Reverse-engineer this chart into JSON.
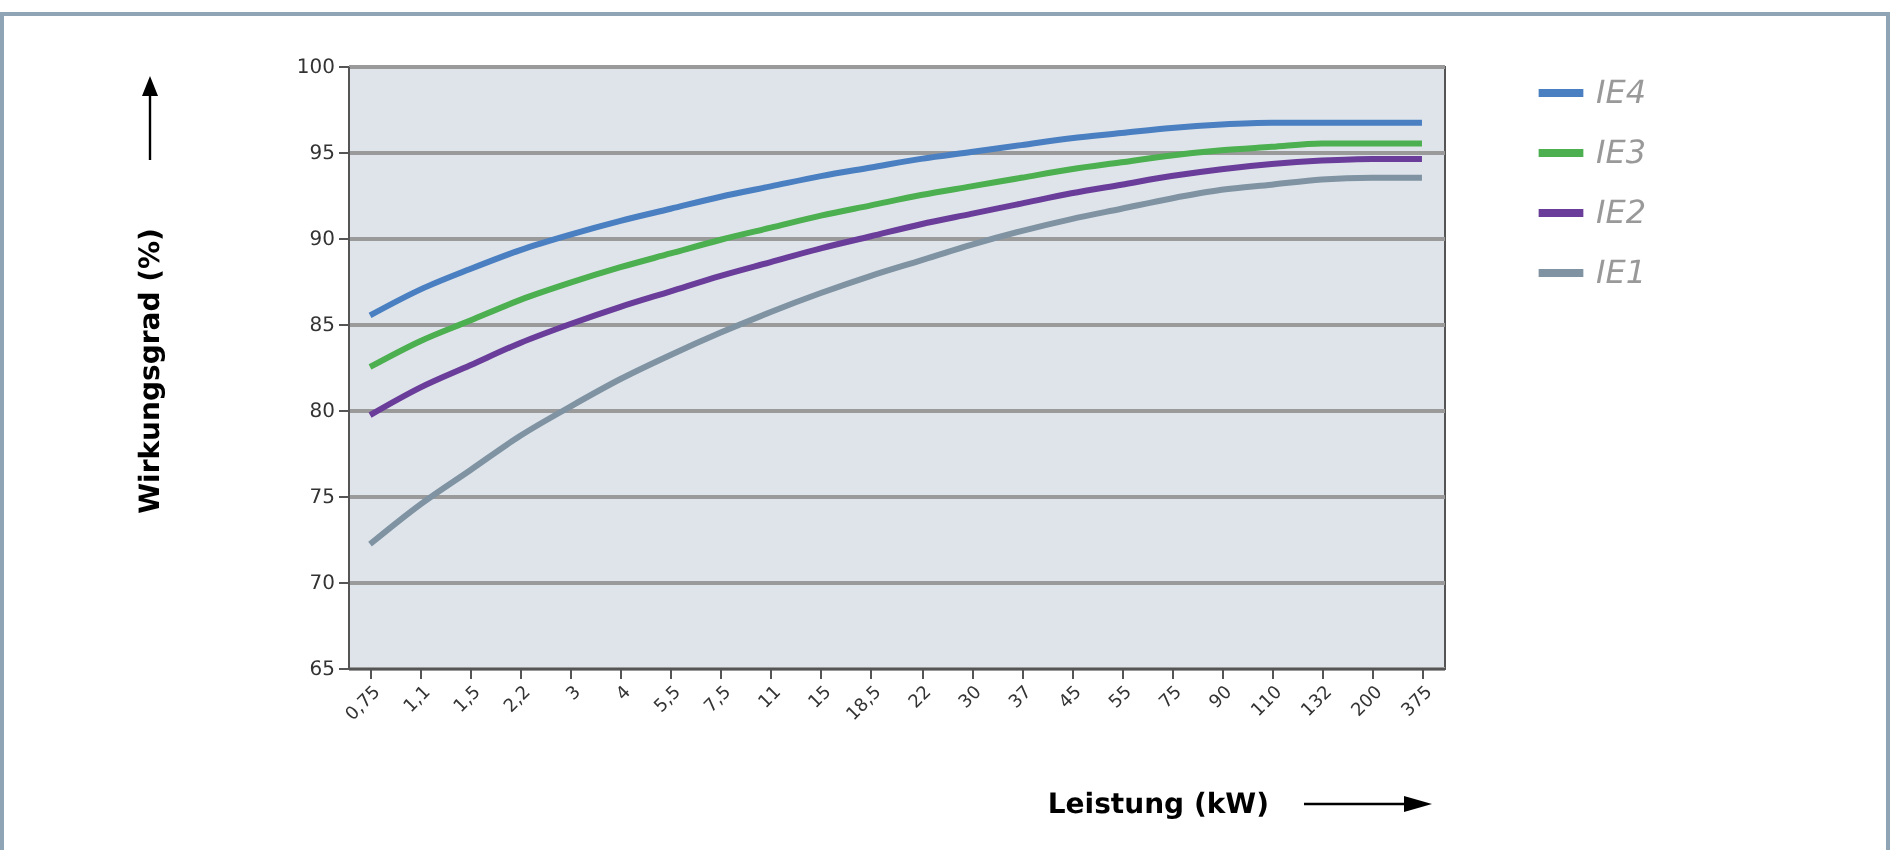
{
  "chart_data": {
    "type": "line",
    "xlabel": "Leistung (kW)",
    "ylabel": "Wirkungsgrad (%)",
    "categories": [
      "0,75",
      "1,1",
      "1,5",
      "2,2",
      "3",
      "4",
      "5,5",
      "7,5",
      "11",
      "15",
      "18,5",
      "22",
      "30",
      "37",
      "45",
      "55",
      "75",
      "90",
      "110",
      "132",
      "200",
      "375"
    ],
    "series": [
      {
        "name": "IE4",
        "color": "#4a7fc1",
        "values": [
          85.5,
          87,
          88.2,
          89.3,
          90.2,
          91,
          91.7,
          92.4,
          93,
          93.6,
          94.1,
          94.6,
          95,
          95.4,
          95.8,
          96.1,
          96.4,
          96.6,
          96.7,
          96.7,
          96.7,
          96.7
        ]
      },
      {
        "name": "IE3",
        "color": "#4caf50",
        "values": [
          82.5,
          84,
          85.2,
          86.4,
          87.4,
          88.3,
          89.1,
          89.9,
          90.6,
          91.3,
          91.9,
          92.5,
          93,
          93.5,
          94,
          94.4,
          94.8,
          95.1,
          95.3,
          95.5,
          95.5,
          95.5
        ]
      },
      {
        "name": "IE2",
        "color": "#6a3d9a",
        "values": [
          79.7,
          81.3,
          82.6,
          83.9,
          85,
          86,
          86.9,
          87.8,
          88.6,
          89.4,
          90.1,
          90.8,
          91.4,
          92,
          92.6,
          93.1,
          93.6,
          94,
          94.3,
          94.5,
          94.6,
          94.6
        ]
      },
      {
        "name": "IE1",
        "color": "#7f93a3",
        "values": [
          72.2,
          74.5,
          76.5,
          78.5,
          80.2,
          81.8,
          83.2,
          84.5,
          85.7,
          86.8,
          87.8,
          88.7,
          89.6,
          90.4,
          91.1,
          91.7,
          92.3,
          92.8,
          93.1,
          93.4,
          93.5,
          93.5
        ]
      }
    ],
    "ylim": [
      65,
      100
    ],
    "yticks": [
      65,
      70,
      75,
      80,
      85,
      90,
      95,
      100
    ],
    "grid": "y",
    "legend": "right",
    "marker": "none",
    "line_style": "solid"
  }
}
